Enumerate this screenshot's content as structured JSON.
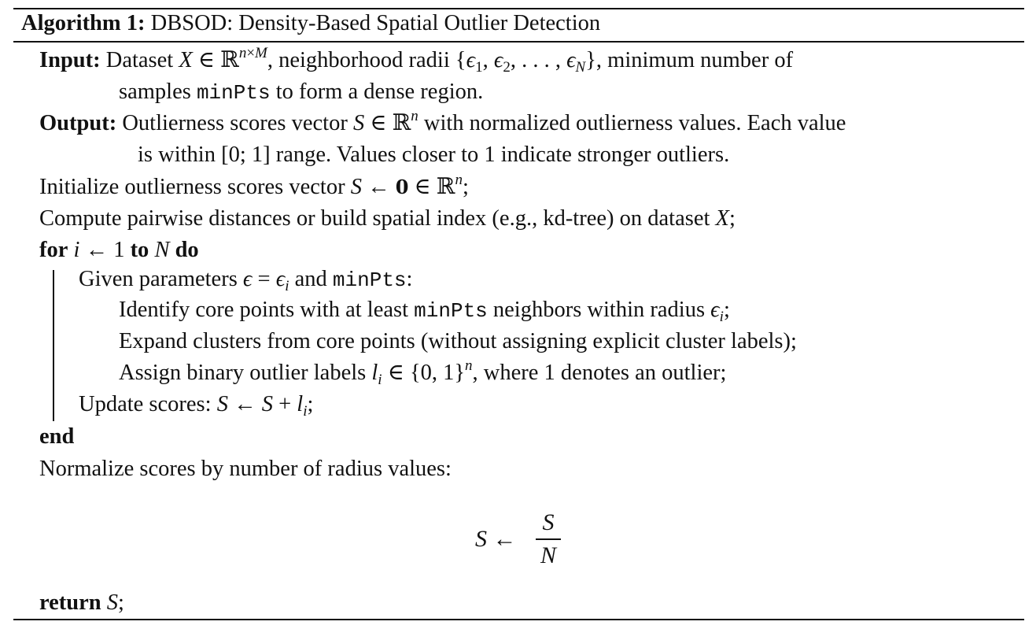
{
  "algorithm": {
    "label": "Algorithm 1:",
    "title": "DBSOD: Density-Based Spatial Outlier Detection"
  },
  "input": {
    "label": "Input:",
    "text_a": "Dataset ",
    "text_b": ", neighborhood radii ",
    "text_c": ", minimum number of",
    "line2_a": "samples ",
    "line2_code": "minPts",
    "line2_b": " to form a dense region."
  },
  "output": {
    "label": "Output:",
    "text_a": "Outlierness scores vector ",
    "text_b": " with normalized outlierness values. Each value",
    "line2_a": "is within ",
    "line2_range": "[0; 1]",
    "line2_b": " range. Values closer to 1 indicate stronger outliers."
  },
  "steps": {
    "init_a": "Initialize outlierness scores vector ",
    "init_b": ";",
    "compute_a": "Compute pairwise distances or build spatial index (e.g., kd-tree) on dataset ",
    "compute_b": ";",
    "for_kw": "for",
    "to_kw": "to",
    "do_kw": "do",
    "given_a": "Given parameters ",
    "given_b": " and ",
    "given_code": "minPts",
    "given_c": ":",
    "identify_a": "Identify core points with at least ",
    "identify_code": "minPts",
    "identify_b": " neighbors within radius ",
    "identify_c": ";",
    "expand": "Expand clusters from core points (without assigning explicit cluster labels);",
    "assign_a": "Assign binary outlier labels ",
    "assign_b": ", where 1 denotes an outlier;",
    "update_a": "Update scores: ",
    "update_b": ";",
    "end_kw": "end",
    "normalize": "Normalize scores by number of radius values:",
    "return_kw": "return",
    "return_b": ";"
  }
}
